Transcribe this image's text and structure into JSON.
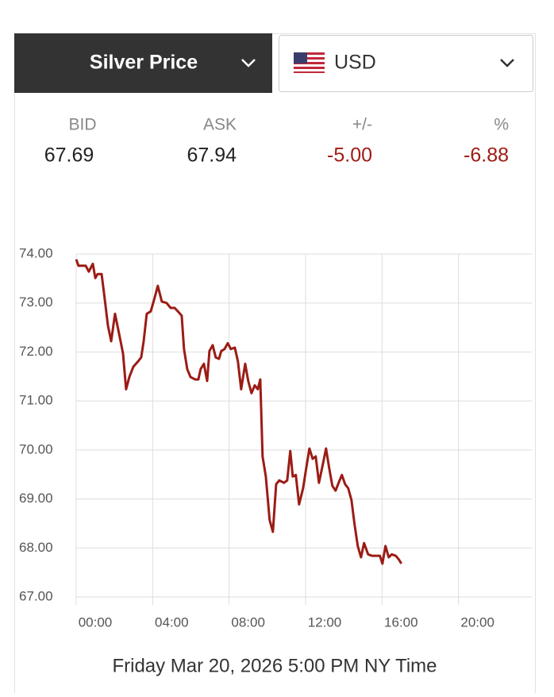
{
  "selector": {
    "metal": "Silver Price",
    "currency": "USD"
  },
  "quote": [
    {
      "label": "BID",
      "value": "67.69"
    },
    {
      "label": "ASK",
      "value": "67.94"
    },
    {
      "label": "+/-",
      "value": "-5.00"
    },
    {
      "label": "%",
      "value": "-6.88"
    }
  ],
  "chart_data": {
    "type": "line",
    "xlabel": "Friday Mar 20, 2026 5:00 PM NY Time",
    "xlim": [
      0,
      24
    ],
    "ylim": [
      67,
      74
    ],
    "xticks": [
      {
        "value": 0,
        "label": "00:00"
      },
      {
        "value": 4,
        "label": "04:00"
      },
      {
        "value": 8,
        "label": "08:00"
      },
      {
        "value": 12,
        "label": "12:00"
      },
      {
        "value": 16,
        "label": "16:00"
      },
      {
        "value": 20,
        "label": "20:00"
      }
    ],
    "yticks": [
      {
        "value": 67,
        "label": "67.00"
      },
      {
        "value": 68,
        "label": "68.00"
      },
      {
        "value": 69,
        "label": "69.00"
      },
      {
        "value": 70,
        "label": "70.00"
      },
      {
        "value": 71,
        "label": "71.00"
      },
      {
        "value": 72,
        "label": "72.00"
      },
      {
        "value": 73,
        "label": "73.00"
      },
      {
        "value": 74,
        "label": "74.00"
      }
    ],
    "grid": true,
    "series": [
      {
        "color": "#9b1c15",
        "x": [
          0,
          0.12,
          0.5,
          0.66,
          0.87,
          1.0,
          1.12,
          1.33,
          1.45,
          1.66,
          1.83,
          2.03,
          2.24,
          2.45,
          2.61,
          2.78,
          2.99,
          3.24,
          3.4,
          3.53,
          3.69,
          3.9,
          4.07,
          4.27,
          4.48,
          4.73,
          4.94,
          5.15,
          5.39,
          5.52,
          5.64,
          5.81,
          5.98,
          6.22,
          6.39,
          6.51,
          6.68,
          6.85,
          6.97,
          7.14,
          7.3,
          7.47,
          7.59,
          7.76,
          7.93,
          8.09,
          8.3,
          8.46,
          8.63,
          8.84,
          9.0,
          9.17,
          9.34,
          9.5,
          9.63,
          9.75,
          9.92,
          10.12,
          10.29,
          10.46,
          10.62,
          10.87,
          11.04,
          11.2,
          11.33,
          11.49,
          11.66,
          11.87,
          12.03,
          12.2,
          12.37,
          12.53,
          12.7,
          12.9,
          13.07,
          13.24,
          13.4,
          13.57,
          13.73,
          13.9,
          14.07,
          14.23,
          14.4,
          14.56,
          14.73,
          14.9,
          15.06,
          15.27,
          15.48,
          15.68,
          15.89,
          16.02,
          16.18,
          16.35,
          16.51,
          16.72,
          16.89,
          17.01
        ],
        "values": [
          73.89,
          73.76,
          73.76,
          73.64,
          73.8,
          73.51,
          73.59,
          73.59,
          73.22,
          72.54,
          72.22,
          72.78,
          72.38,
          71.97,
          71.24,
          71.49,
          71.7,
          71.81,
          71.89,
          72.22,
          72.78,
          72.83,
          73.06,
          73.35,
          73.03,
          73.0,
          72.9,
          72.9,
          72.8,
          72.74,
          72.06,
          71.65,
          71.49,
          71.44,
          71.44,
          71.65,
          71.76,
          71.41,
          72.02,
          72.14,
          71.89,
          71.86,
          72.02,
          72.06,
          72.18,
          72.06,
          72.09,
          71.81,
          71.24,
          71.76,
          71.41,
          71.16,
          71.32,
          71.24,
          71.44,
          69.87,
          69.46,
          68.57,
          68.33,
          69.3,
          69.38,
          69.33,
          69.38,
          69.98,
          69.46,
          69.49,
          68.89,
          69.22,
          69.62,
          70.03,
          69.82,
          69.87,
          69.33,
          69.7,
          70.03,
          69.62,
          69.27,
          69.17,
          69.33,
          69.49,
          69.3,
          69.22,
          68.98,
          68.49,
          68.04,
          67.81,
          68.1,
          67.87,
          67.84,
          67.84,
          67.84,
          67.68,
          68.04,
          67.81,
          67.87,
          67.84,
          67.76,
          67.68
        ]
      }
    ]
  }
}
